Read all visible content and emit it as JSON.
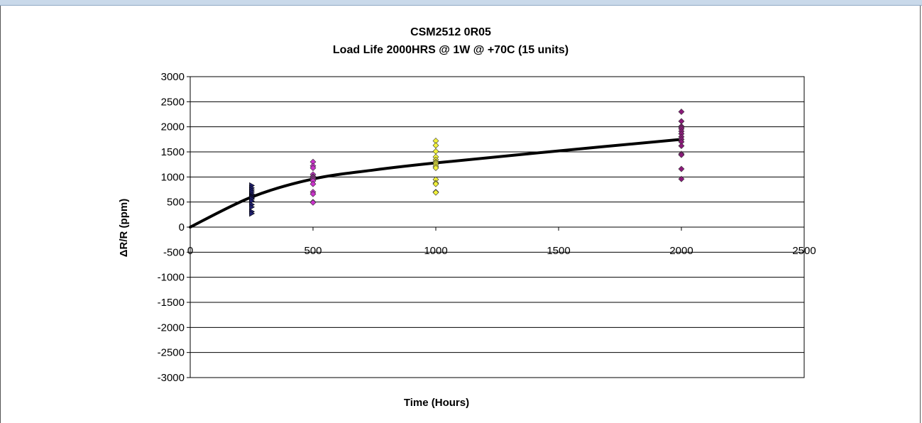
{
  "chart_data": {
    "type": "scatter",
    "title": "CSM2512 0R05",
    "subtitle": "Load Life 2000HRS @ 1W @ +70C (15 units)",
    "xlabel": "Time (Hours)",
    "ylabel": "ΔR/R (ppm)",
    "xlim": [
      0,
      2500
    ],
    "ylim": [
      -3000,
      3000
    ],
    "x_ticks": [
      0,
      500,
      1000,
      1500,
      2000,
      2500
    ],
    "y_ticks": [
      3000,
      2500,
      2000,
      1500,
      1000,
      500,
      0,
      -500,
      -1000,
      -1500,
      -2000,
      -2500,
      -3000
    ],
    "grid": "horizontal",
    "series": [
      {
        "x": 250,
        "marker": "triangle",
        "color": "#1f1f6e",
        "values": [
          830,
          780,
          740,
          700,
          660,
          630,
          610,
          600,
          580,
          560,
          520,
          450,
          400,
          310,
          270
        ]
      },
      {
        "x": 500,
        "marker": "diamond",
        "color": "#cc33cc",
        "values": [
          1300,
          1220,
          1180,
          1050,
          1010,
          1000,
          980,
          960,
          940,
          920,
          860,
          700,
          660,
          500,
          490
        ]
      },
      {
        "x": 1000,
        "marker": "diamond",
        "color": "#f2f23a",
        "values": [
          1720,
          1630,
          1510,
          1400,
          1340,
          1300,
          1280,
          1250,
          1210,
          1180,
          950,
          880,
          860,
          700,
          690
        ]
      },
      {
        "x": 2000,
        "marker": "diamond",
        "color": "#8b1a7a",
        "values": [
          2300,
          2110,
          2010,
          1990,
          1960,
          1910,
          1860,
          1800,
          1750,
          1700,
          1620,
          1460,
          1440,
          1160,
          960
        ]
      }
    ],
    "trendline": {
      "color": "#000000",
      "points": [
        [
          0,
          0
        ],
        [
          250,
          600
        ],
        [
          500,
          960
        ],
        [
          750,
          1140
        ],
        [
          1000,
          1280
        ],
        [
          1500,
          1520
        ],
        [
          2000,
          1750
        ]
      ]
    }
  }
}
